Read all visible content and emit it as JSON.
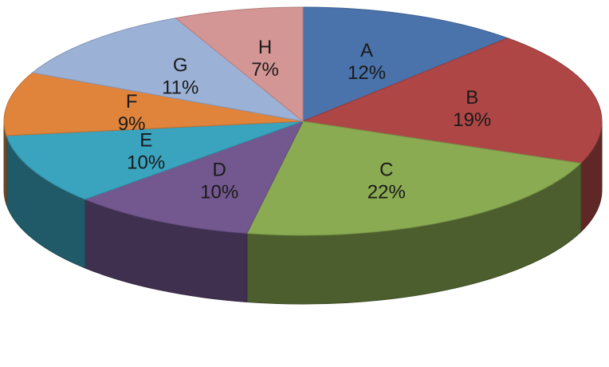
{
  "chart_data": {
    "type": "pie",
    "style": "3d",
    "title": "",
    "slices": [
      {
        "label": "A",
        "value": 12,
        "display": "12%",
        "color": "#4a72ab"
      },
      {
        "label": "B",
        "value": 19,
        "display": "19%",
        "color": "#ad4645"
      },
      {
        "label": "C",
        "value": 22,
        "display": "22%",
        "color": "#8aab52"
      },
      {
        "label": "D",
        "value": 10,
        "display": "10%",
        "color": "#73588f"
      },
      {
        "label": "E",
        "value": 10,
        "display": "10%",
        "color": "#3aa3bd"
      },
      {
        "label": "F",
        "value": 9,
        "display": "9%",
        "color": "#e0843c"
      },
      {
        "label": "G",
        "value": 11,
        "display": "11%",
        "color": "#9cb1d6"
      },
      {
        "label": "H",
        "value": 7,
        "display": "7%",
        "color": "#d39694"
      }
    ],
    "legend": "none"
  }
}
